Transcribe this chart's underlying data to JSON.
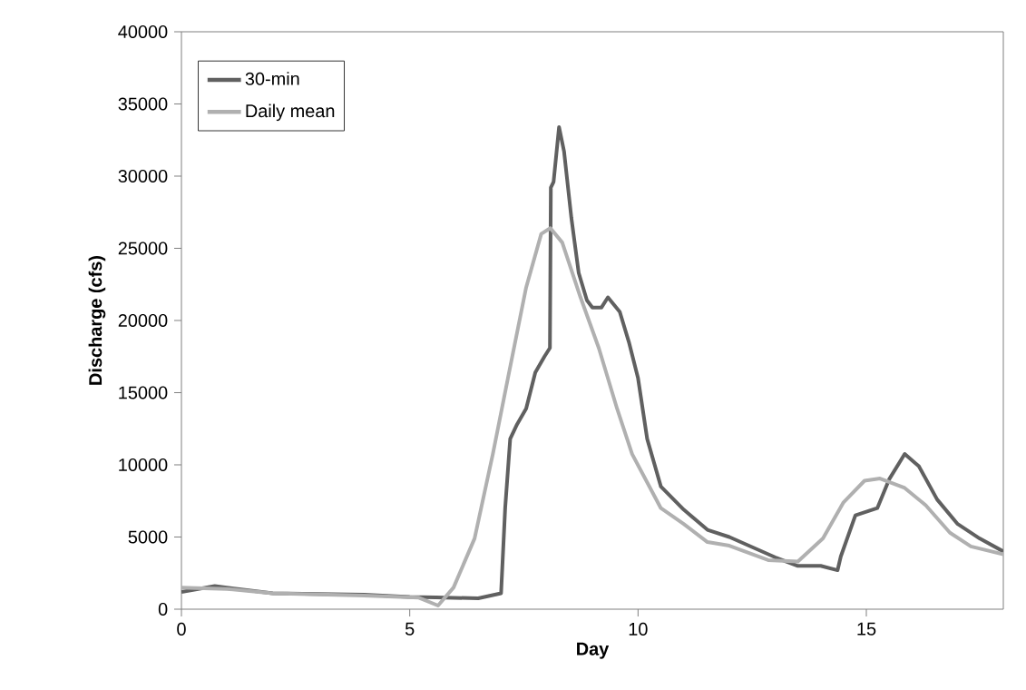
{
  "chart_data": {
    "type": "line",
    "xlabel": "Day",
    "ylabel": "Discharge (cfs)",
    "xlim": [
      0,
      18
    ],
    "xticks": [
      0,
      5,
      10,
      15
    ],
    "ylim": [
      0,
      40000
    ],
    "yticks": [
      0,
      5000,
      10000,
      15000,
      20000,
      25000,
      30000,
      35000,
      40000
    ],
    "grid": false,
    "legend": "top left",
    "marker": "none",
    "line_style": "solid",
    "series": [
      {
        "name": "30-min",
        "color": "#606060",
        "x": [
          0,
          0.73,
          2,
          4,
          5,
          5.57,
          6.5,
          7.0,
          7.09,
          7.2,
          7.35,
          7.55,
          7.75,
          7.95,
          8.07,
          8.09,
          8.15,
          8.27,
          8.38,
          8.54,
          8.7,
          8.88,
          9.0,
          9.2,
          9.34,
          9.6,
          9.8,
          10.0,
          10.2,
          10.5,
          11.0,
          11.52,
          12.0,
          13.0,
          13.5,
          14.0,
          14.37,
          14.44,
          14.76,
          15.24,
          15.5,
          15.84,
          16.15,
          16.55,
          17.0,
          17.48,
          18.0
        ],
        "values": [
          1200,
          1600,
          1100,
          1000,
          850,
          820,
          750,
          1100,
          7000,
          11800,
          12800,
          13900,
          16400,
          17500,
          18100,
          29200,
          29600,
          33400,
          31700,
          27100,
          23300,
          21400,
          20900,
          20900,
          21600,
          20600,
          18500,
          16000,
          11800,
          8500,
          6900,
          5500,
          5000,
          3600,
          3000,
          3000,
          2700,
          3650,
          6500,
          7000,
          9000,
          10750,
          9900,
          7600,
          5900,
          4900,
          4000
        ]
      },
      {
        "name": "Daily mean",
        "color": "#b0b0b0",
        "x": [
          0,
          1,
          2,
          4,
          5.2,
          5.62,
          5.96,
          6.42,
          6.82,
          7.15,
          7.55,
          7.88,
          8.08,
          8.34,
          8.74,
          9.14,
          9.54,
          9.87,
          10.5,
          11.0,
          11.52,
          12.0,
          12.85,
          13.5,
          14.05,
          14.5,
          14.96,
          15.3,
          15.84,
          16.3,
          16.83,
          17.29,
          18.0
        ],
        "values": [
          1500,
          1400,
          1100,
          950,
          800,
          250,
          1500,
          4900,
          10750,
          16000,
          22300,
          26000,
          26400,
          25400,
          21600,
          18100,
          13900,
          10750,
          7000,
          5900,
          4650,
          4400,
          3400,
          3300,
          4900,
          7400,
          8900,
          9050,
          8400,
          7200,
          5300,
          4350,
          3800
        ]
      }
    ]
  }
}
